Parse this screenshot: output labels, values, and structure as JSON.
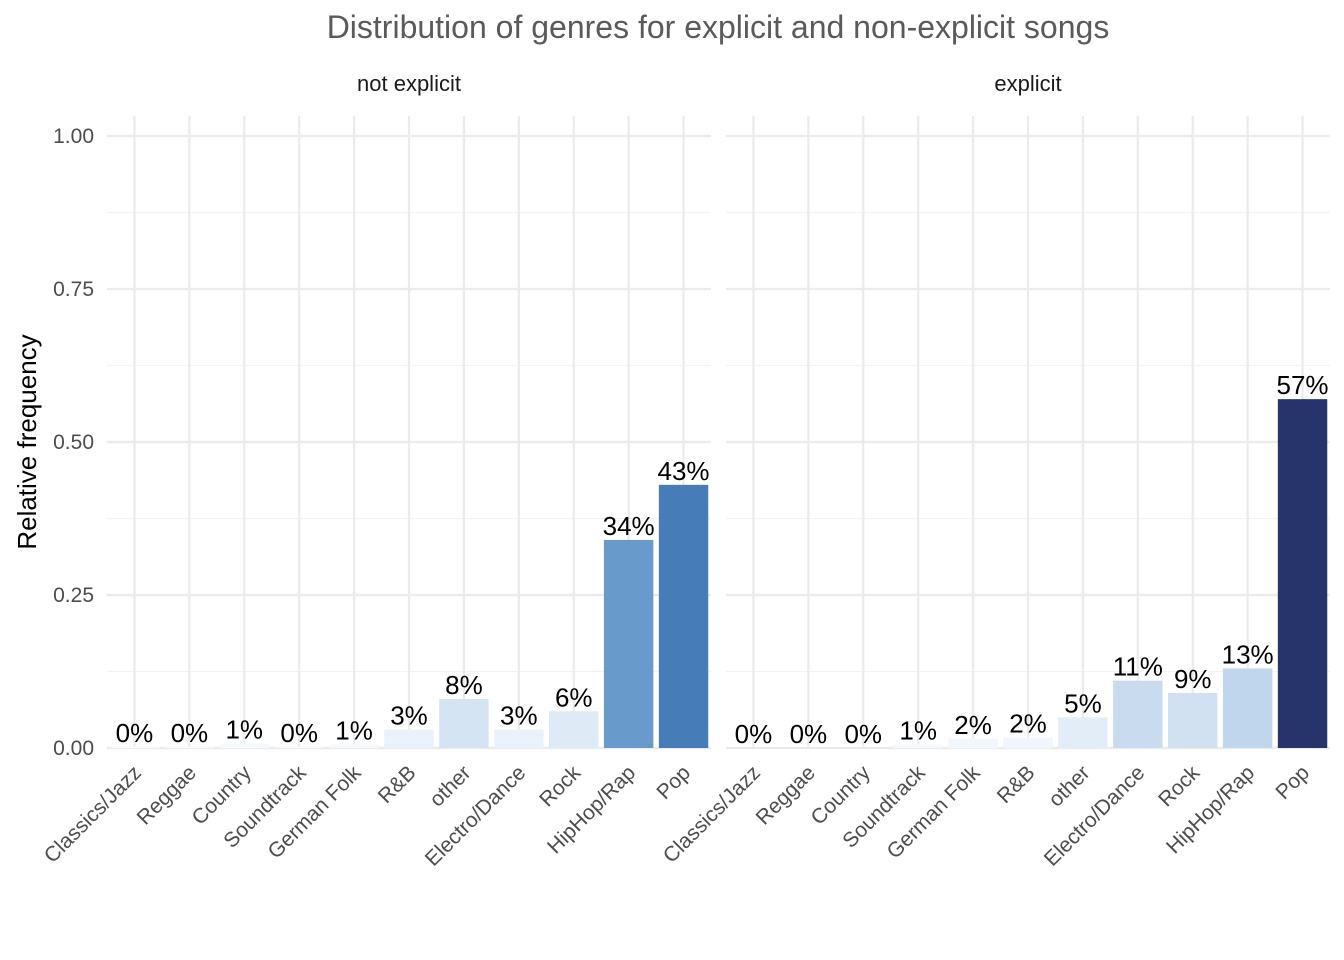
{
  "chart_data": {
    "type": "bar",
    "title": "Distribution of genres for explicit and non-explicit songs",
    "xlabel": "",
    "ylabel": "Relative frequency",
    "ylim": [
      0,
      1.0
    ],
    "yticks": [
      0,
      0.25,
      0.5,
      0.75,
      1.0
    ],
    "ytick_labels": [
      "0.00",
      "0.25",
      "0.50",
      "0.75",
      "1.00"
    ],
    "grid": true,
    "legend": "none",
    "facets": [
      {
        "name": "not explicit",
        "categories": [
          "Classics/Jazz",
          "Reggae",
          "Country",
          "Soundtrack",
          "German Folk",
          "R&B",
          "other",
          "Electro/Dance",
          "Rock",
          "HipHop/Rap",
          "Pop"
        ],
        "values": [
          0.002,
          0.002,
          0.007,
          0.002,
          0.006,
          0.03,
          0.08,
          0.03,
          0.06,
          0.34,
          0.43
        ],
        "labels": [
          "0%",
          "0%",
          "1%",
          "0%",
          "1%",
          "3%",
          "8%",
          "3%",
          "6%",
          "34%",
          "43%"
        ]
      },
      {
        "name": "explicit",
        "categories": [
          "Classics/Jazz",
          "Reggae",
          "Country",
          "Soundtrack",
          "German Folk",
          "R&B",
          "other",
          "Electro/Dance",
          "Rock",
          "HipHop/Rap",
          "Pop"
        ],
        "values": [
          0.0,
          0.0,
          0.0,
          0.006,
          0.015,
          0.017,
          0.05,
          0.11,
          0.09,
          0.13,
          0.57
        ],
        "labels": [
          "0%",
          "0%",
          "0%",
          "1%",
          "2%",
          "2%",
          "5%",
          "11%",
          "9%",
          "13%",
          "57%"
        ]
      }
    ],
    "color_scale": {
      "low": "#f7fbff",
      "mid": "#4a86c2",
      "high": "#26346b"
    }
  }
}
